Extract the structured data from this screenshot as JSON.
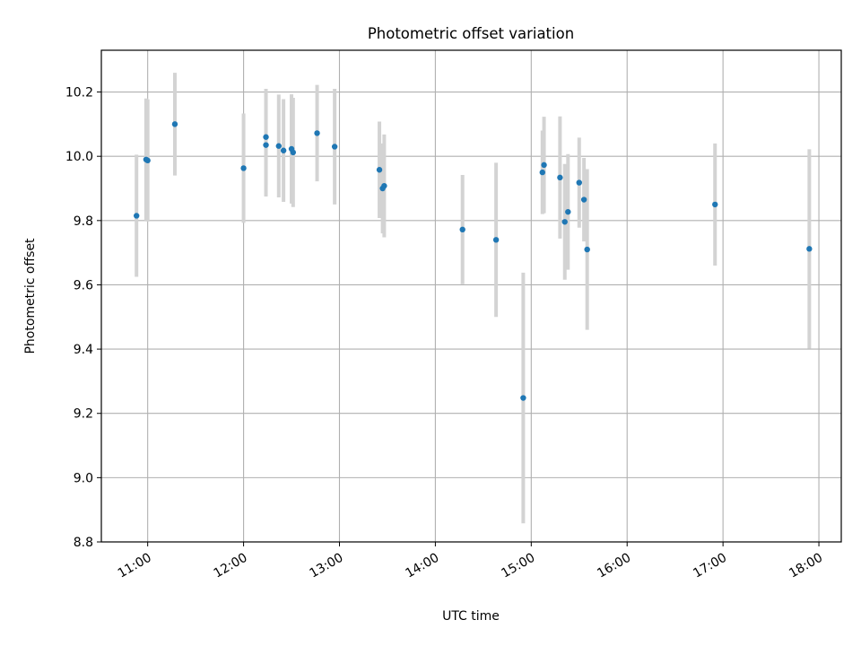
{
  "chart_data": {
    "type": "scatter",
    "title": "Photometric offset variation",
    "xlabel": "UTC time",
    "ylabel": "Photometric offset",
    "x_tick_labels": [
      "11:00",
      "12:00",
      "13:00",
      "14:00",
      "15:00",
      "16:00",
      "17:00",
      "18:00"
    ],
    "x_tick_values": [
      "11:00",
      "12:00",
      "13:00",
      "14:00",
      "15:00",
      "16:00",
      "17:00",
      "18:00"
    ],
    "xlim": [
      "10:31",
      "18:14"
    ],
    "y_ticks": [
      8.8,
      9.0,
      9.2,
      9.4,
      9.6,
      9.8,
      10.0,
      10.2
    ],
    "y_tick_labels": [
      "8.8",
      "9.0",
      "9.2",
      "9.4",
      "9.6",
      "9.8",
      "10.0",
      "10.2"
    ],
    "ylim": [
      8.8,
      10.33
    ],
    "grid": true,
    "point_color": "#1f77b4",
    "errorbar_color": "#d3d3d3",
    "series": [
      {
        "points": [
          {
            "x": "10:53",
            "y": 9.815,
            "yerr": 0.19
          },
          {
            "x": "10:59",
            "y": 9.99,
            "yerr": 0.19
          },
          {
            "x": "11:00",
            "y": 9.987,
            "yerr": 0.19
          },
          {
            "x": "11:17",
            "y": 10.1,
            "yerr": 0.16
          },
          {
            "x": "12:00",
            "y": 9.963,
            "yerr": 0.17
          },
          {
            "x": "12:14",
            "y": 10.06,
            "yerr": 0.15
          },
          {
            "x": "12:14",
            "y": 10.035,
            "yerr": 0.16
          },
          {
            "x": "12:22",
            "y": 10.032,
            "yerr": 0.16
          },
          {
            "x": "12:25",
            "y": 10.018,
            "yerr": 0.16
          },
          {
            "x": "12:30",
            "y": 10.023,
            "yerr": 0.17
          },
          {
            "x": "12:31",
            "y": 10.012,
            "yerr": 0.17
          },
          {
            "x": "12:46",
            "y": 10.072,
            "yerr": 0.15
          },
          {
            "x": "12:57",
            "y": 10.03,
            "yerr": 0.18
          },
          {
            "x": "13:25",
            "y": 9.958,
            "yerr": 0.15
          },
          {
            "x": "13:27",
            "y": 9.9,
            "yerr": 0.14
          },
          {
            "x": "13:28",
            "y": 9.908,
            "yerr": 0.16
          },
          {
            "x": "14:17",
            "y": 9.772,
            "yerr": 0.17
          },
          {
            "x": "14:38",
            "y": 9.74,
            "yerr": 0.24
          },
          {
            "x": "14:55",
            "y": 9.248,
            "yerr": 0.39
          },
          {
            "x": "15:07",
            "y": 9.95,
            "yerr": 0.13
          },
          {
            "x": "15:08",
            "y": 9.973,
            "yerr": 0.15
          },
          {
            "x": "15:18",
            "y": 9.934,
            "yerr": 0.19
          },
          {
            "x": "15:21",
            "y": 9.796,
            "yerr": 0.18
          },
          {
            "x": "15:23",
            "y": 9.827,
            "yerr": 0.18
          },
          {
            "x": "15:30",
            "y": 9.918,
            "yerr": 0.14
          },
          {
            "x": "15:33",
            "y": 9.865,
            "yerr": 0.13
          },
          {
            "x": "15:35",
            "y": 9.71,
            "yerr": 0.25
          },
          {
            "x": "16:55",
            "y": 9.85,
            "yerr": 0.19
          },
          {
            "x": "17:54",
            "y": 9.712,
            "yerr": 0.31
          }
        ]
      }
    ]
  }
}
